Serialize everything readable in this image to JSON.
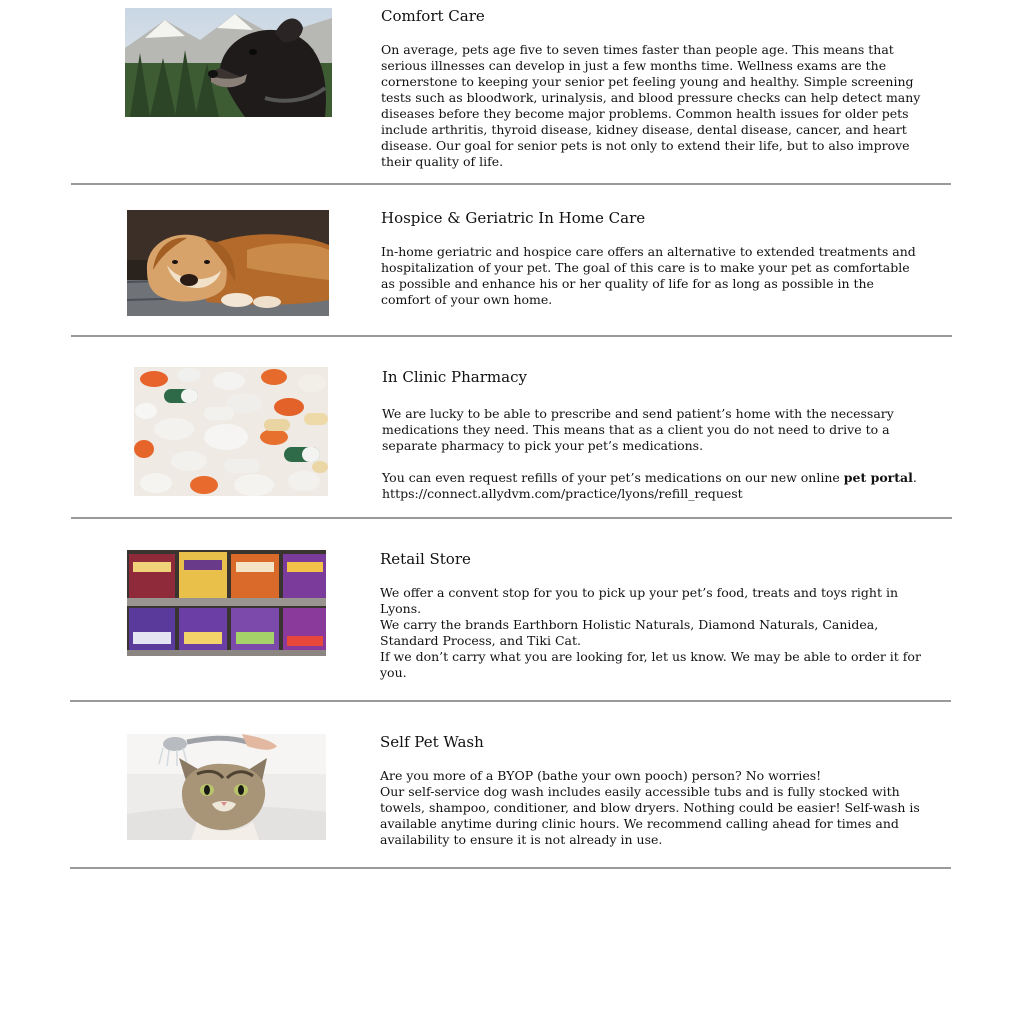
{
  "sections": [
    {
      "image": "senior-dog-photo",
      "title": "Comfort Care",
      "paragraphs": [
        "On average, pets age five to seven times faster than people age. This means that serious illnesses can develop in just a few months time. Wellness exams are the cornerstone to keeping your senior pet feeling young and healthy. Simple screening tests such as bloodwork, urinalysis, and blood pressure checks can help detect many diseases before they become major problems. Common health issues for older pets include arthritis, thyroid disease, kidney disease, dental disease, cancer, and heart disease. Our goal for senior pets is not only to extend their life, but to also improve their quality of life."
      ]
    },
    {
      "image": "resting-dog-photo",
      "title": "Hospice & Geriatric In Home Care",
      "paragraphs": [
        "In-home geriatric and hospice care offers an alternative to extended treatments and hospitalization of your pet. The goal of this care is to make your pet as comfortable as possible and enhance his or her quality of life for as long as possible in the comfort of your own home."
      ]
    },
    {
      "image": "pills-photo",
      "title": "In Clinic Pharmacy",
      "paragraphs": [
        "We are lucky to be able to prescribe and send patient’s home with the necessary medications they need. This means that as a client you do not need to drive to a separate pharmacy to pick your pet’s medications."
      ],
      "refill_text": "You can even request refills of your pet’s medications on our new online ",
      "portal_link": "pet portal",
      "refill_end": ".",
      "refill_url": "https://connect.allydvm.com/practice/lyons/refill_request"
    },
    {
      "image": "pet-food-shelf-photo",
      "title": "Retail Store",
      "paragraphs": [
        "We offer a convent stop for you to pick up your pet’s food, treats and toys right in Lyons.",
        "We carry the brands Earthborn Holistic Naturals, Diamond Naturals, Canidea, Standard Process, and Tiki Cat.",
        "If we don’t carry what you are looking for, let us know. We may be able to order it for you."
      ]
    },
    {
      "image": "cat-bath-photo",
      "title": "Self Pet Wash",
      "paragraphs": [
        "Are you more of a BYOP (bathe your own pooch) person? No worries!",
        "Our self-service dog wash includes easily accessible tubs and is fully stocked with towels, shampoo, conditioner, and blow dryers. Nothing could be easier! Self-wash is available anytime during clinic hours. We recommend calling ahead for times and availability to ensure it is not already in use."
      ]
    }
  ]
}
